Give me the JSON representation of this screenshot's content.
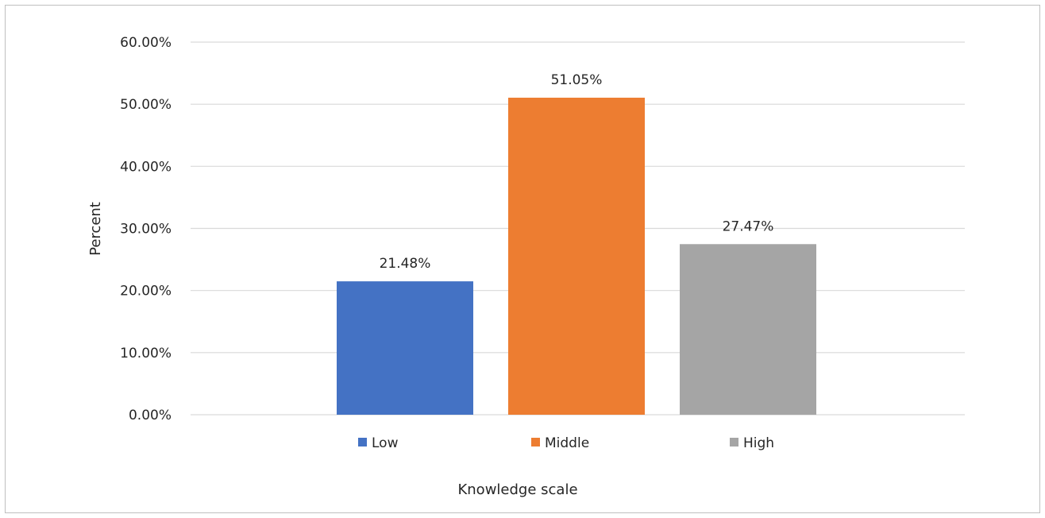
{
  "chart_data": {
    "type": "bar",
    "categories": [
      "Low",
      "Middle",
      "High"
    ],
    "values": [
      21.48,
      51.05,
      27.47
    ],
    "value_labels": [
      "21.48%",
      "51.05%",
      "27.47%"
    ],
    "colors": [
      "#4472c4",
      "#ed7d31",
      "#a5a5a5"
    ],
    "xlabel": "Knowledge scale",
    "ylabel": "Percent",
    "ylim": [
      0,
      60
    ],
    "yticks": [
      0,
      10,
      20,
      30,
      40,
      50,
      60
    ],
    "ytick_labels": [
      "0.00%",
      "10.00%",
      "20.00%",
      "30.00%",
      "40.00%",
      "50.00%",
      "60.00%"
    ],
    "grid": true,
    "gridline_color": "#d9d9d9",
    "legend": {
      "position": "bottom",
      "entries": [
        "Low",
        "Middle",
        "High"
      ]
    }
  }
}
